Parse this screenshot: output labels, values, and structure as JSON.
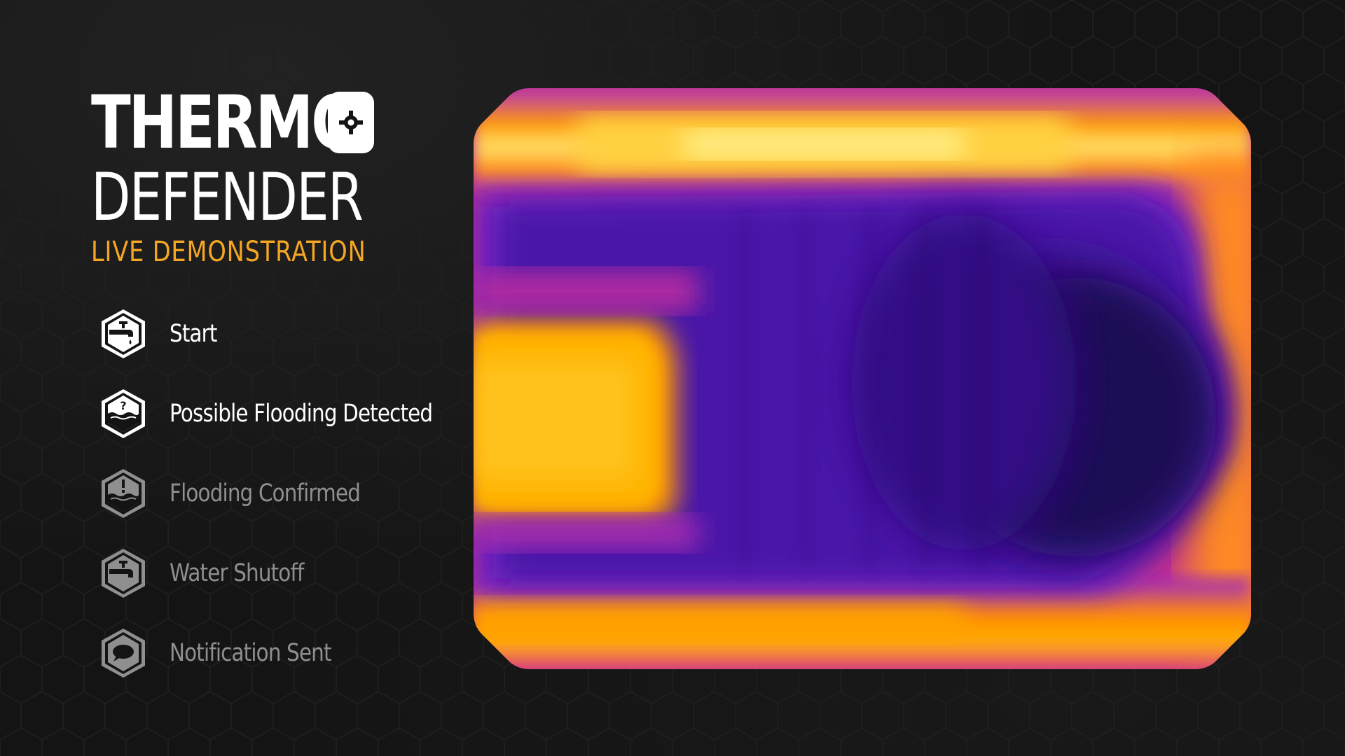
{
  "app": {
    "title_line1": "THERMO",
    "title_line2": "DEFENDER",
    "subtitle": "LIVE DEMONSTRATION",
    "accent_color": "#f5a623"
  },
  "steps": [
    {
      "label": "Start",
      "icon": "faucet-drip-icon",
      "status": "active"
    },
    {
      "label": "Possible Flooding Detected",
      "icon": "water-question-icon",
      "status": "active"
    },
    {
      "label": "Flooding Confirmed",
      "icon": "water-alert-icon",
      "status": "inactive"
    },
    {
      "label": "Water Shutoff",
      "icon": "faucet-off-icon",
      "status": "inactive"
    },
    {
      "label": "Notification Sent",
      "icon": "speech-bubble-icon",
      "status": "inactive"
    }
  ],
  "thermal_view": {
    "palette": [
      "#1b0a4a",
      "#4a19a8",
      "#9a22c8",
      "#e0407a",
      "#ff9a00",
      "#ffe66a"
    ],
    "hot_color": "#ffb000",
    "cold_color": "#2a0f6e"
  }
}
